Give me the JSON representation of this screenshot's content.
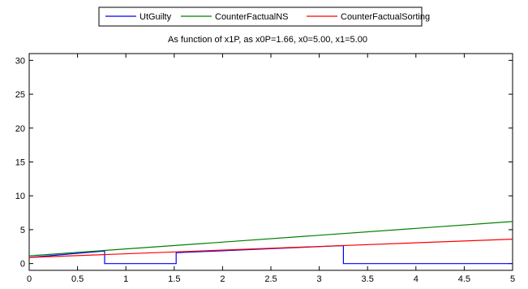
{
  "chart_data": {
    "type": "line",
    "title": "As function of x1P, as x0P=1.66, x0=5.00, x1=5.00",
    "xlabel": "",
    "ylabel": "",
    "xlim": [
      0,
      5
    ],
    "ylim": [
      -1,
      31
    ],
    "x_ticks": [
      0,
      0.5,
      1,
      1.5,
      2,
      2.5,
      3,
      3.5,
      4,
      4.5,
      5
    ],
    "x_tick_labels": [
      "0",
      "0.5",
      "1",
      "1.5",
      "2",
      "2.5",
      "3",
      "3.5",
      "4",
      "4.5",
      "5"
    ],
    "y_ticks": [
      0,
      5,
      10,
      15,
      20,
      25,
      30
    ],
    "y_tick_labels": [
      "0",
      "5",
      "10",
      "15",
      "20",
      "25",
      "30"
    ],
    "grid": false,
    "legend_placement": "top-center",
    "series": [
      {
        "name": "UtGuilty",
        "color": "#0000ff",
        "x": [
          0,
          0.78,
          0.78,
          1.52,
          1.52,
          3.25,
          3.25,
          5
        ],
        "y": [
          0.9,
          1.85,
          0,
          0,
          1.6,
          2.65,
          0,
          0
        ]
      },
      {
        "name": "CounterFactualNS",
        "color": "#008000",
        "x": [
          0,
          5
        ],
        "y": [
          1.15,
          6.2
        ]
      },
      {
        "name": "CounterFactualSorting",
        "color": "#ff0000",
        "x": [
          0,
          5
        ],
        "y": [
          0.9,
          3.6
        ]
      }
    ]
  }
}
